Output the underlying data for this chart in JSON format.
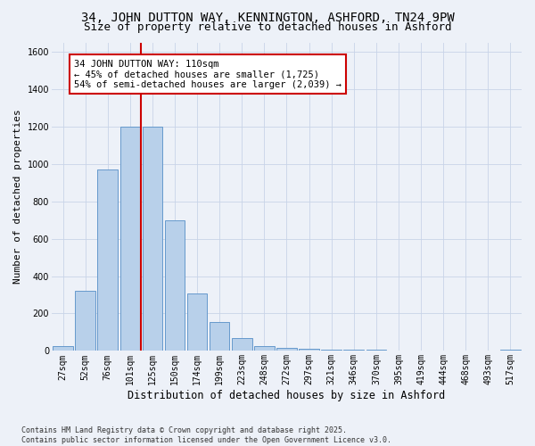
{
  "title_line1": "34, JOHN DUTTON WAY, KENNINGTON, ASHFORD, TN24 9PW",
  "title_line2": "Size of property relative to detached houses in Ashford",
  "xlabel": "Distribution of detached houses by size in Ashford",
  "ylabel": "Number of detached properties",
  "categories": [
    "27sqm",
    "52sqm",
    "76sqm",
    "101sqm",
    "125sqm",
    "150sqm",
    "174sqm",
    "199sqm",
    "223sqm",
    "248sqm",
    "272sqm",
    "297sqm",
    "321sqm",
    "346sqm",
    "370sqm",
    "395sqm",
    "419sqm",
    "444sqm",
    "468sqm",
    "493sqm",
    "517sqm"
  ],
  "values": [
    25,
    320,
    970,
    1200,
    1200,
    700,
    305,
    155,
    70,
    25,
    15,
    10,
    5,
    5,
    5,
    2,
    2,
    0,
    0,
    0,
    8
  ],
  "bar_color": "#b8d0ea",
  "bar_edge_color": "#6699cc",
  "grid_color": "#c8d4e8",
  "background_color": "#edf1f8",
  "vline_x": 3.5,
  "vline_color": "#cc0000",
  "annotation_text": "34 JOHN DUTTON WAY: 110sqm\n← 45% of detached houses are smaller (1,725)\n54% of semi-detached houses are larger (2,039) →",
  "annotation_box_color": "#ffffff",
  "annotation_box_edge": "#cc0000",
  "ylim": [
    0,
    1650
  ],
  "yticks": [
    0,
    200,
    400,
    600,
    800,
    1000,
    1200,
    1400,
    1600
  ],
  "footnote": "Contains HM Land Registry data © Crown copyright and database right 2025.\nContains public sector information licensed under the Open Government Licence v3.0.",
  "title_fontsize": 10,
  "subtitle_fontsize": 9,
  "xlabel_fontsize": 8.5,
  "ylabel_fontsize": 8,
  "tick_fontsize": 7,
  "annot_fontsize": 7.5,
  "footnote_fontsize": 6
}
